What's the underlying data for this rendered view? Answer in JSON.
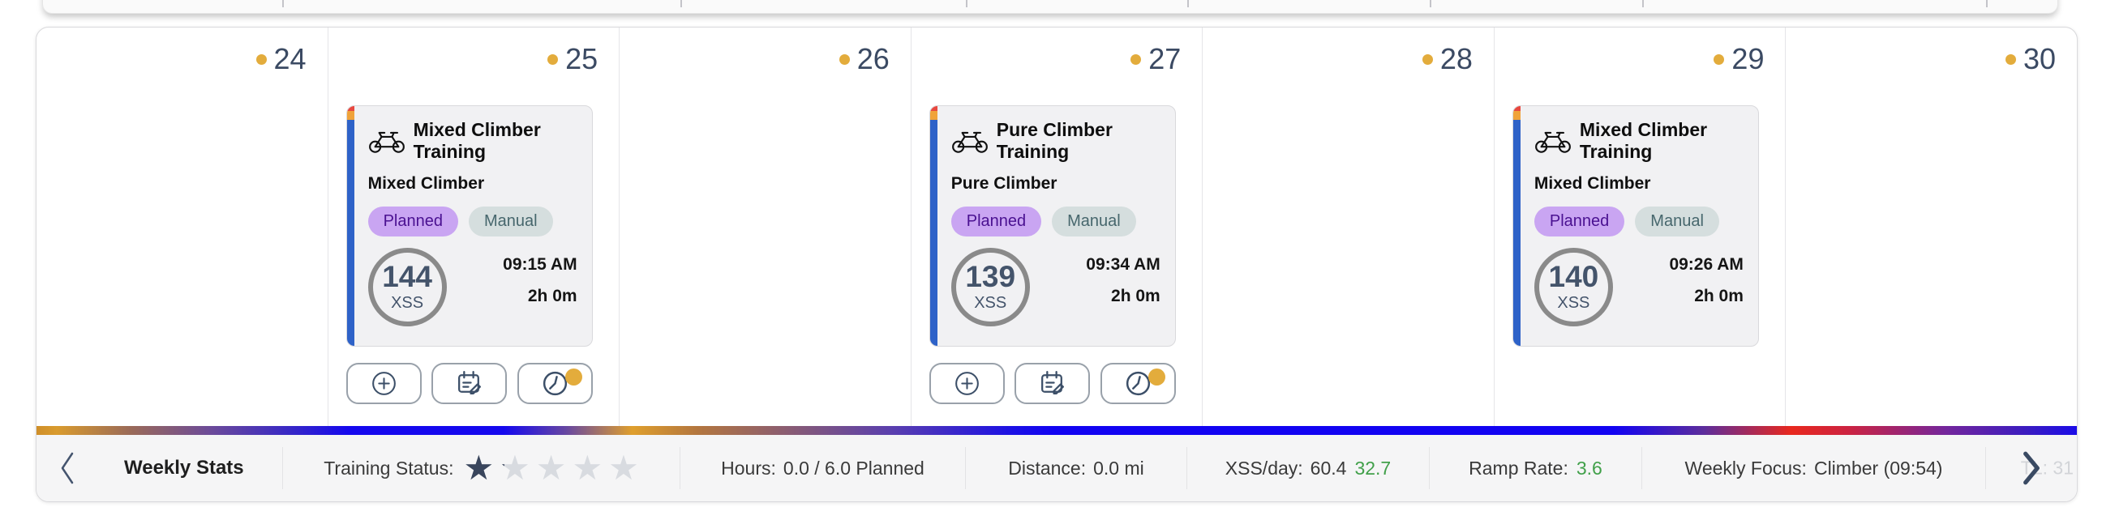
{
  "calendar": {
    "days": [
      {
        "number": "24"
      },
      {
        "number": "25",
        "card": {
          "title": "Mixed Climber Training",
          "subtitle": "Mixed Climber",
          "badge_planned": "Planned",
          "badge_manual": "Manual",
          "xss_value": "144",
          "xss_label": "XSS",
          "start_time": "09:15 AM",
          "duration": "2h 0m"
        }
      },
      {
        "number": "26"
      },
      {
        "number": "27",
        "card": {
          "title": "Pure Climber Training",
          "subtitle": "Pure Climber",
          "badge_planned": "Planned",
          "badge_manual": "Manual",
          "xss_value": "139",
          "xss_label": "XSS",
          "start_time": "09:34 AM",
          "duration": "2h 0m"
        }
      },
      {
        "number": "28"
      },
      {
        "number": "29",
        "card": {
          "title": "Mixed Climber Training",
          "subtitle": "Mixed Climber",
          "badge_planned": "Planned",
          "badge_manual": "Manual",
          "xss_value": "140",
          "xss_label": "XSS",
          "start_time": "09:26 AM",
          "duration": "2h 0m"
        }
      },
      {
        "number": "30"
      }
    ]
  },
  "stats_bar": {
    "weekly_stats_label": "Weekly Stats",
    "training_status": {
      "label": "Training Status:",
      "stars_total": 5,
      "star_fills_percent": [
        100,
        15,
        0,
        0,
        0
      ]
    },
    "hours": {
      "label": "Hours:",
      "value": "0.0 / 6.0 Planned"
    },
    "distance": {
      "label": "Distance:",
      "value": "0.0 mi"
    },
    "xss_per_day": {
      "label": "XSS/day:",
      "value": "60.4",
      "target": "32.7"
    },
    "ramp_rate": {
      "label": "Ramp Rate:",
      "value": "3.6"
    },
    "weekly_focus": {
      "label": "Weekly Focus:",
      "value": "Climber (09:54)"
    },
    "next_peek_text": "TL: 31"
  },
  "icons": {
    "star": "★"
  },
  "colors": {
    "accent_blue": "#2e62c8",
    "gold_dot": "#e3ac3c",
    "green_value": "#41a04a",
    "navy_text": "#3b4a63",
    "planned_badge_bg": "#c9a5f2",
    "planned_badge_text": "#4a1191",
    "manual_badge_bg": "#d5dede",
    "manual_badge_text": "#47676d"
  }
}
